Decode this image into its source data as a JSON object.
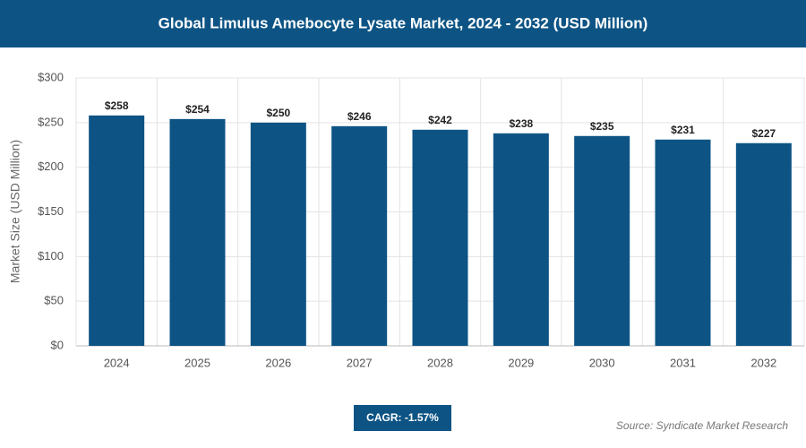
{
  "chart_data": {
    "type": "bar",
    "title": "Global Limulus Amebocyte Lysate Market, 2024 - 2032 (USD Million)",
    "y_label": "Market Size (USD Million)",
    "categories": [
      "2024",
      "2025",
      "2026",
      "2027",
      "2028",
      "2029",
      "2030",
      "2031",
      "2032"
    ],
    "values": [
      258,
      254,
      250,
      246,
      242,
      238,
      235,
      231,
      227
    ],
    "value_labels": [
      "$258",
      "$254",
      "$250",
      "$246",
      "$242",
      "$238",
      "$235",
      "$231",
      "$227"
    ],
    "color": "#0d5485",
    "ylim": [
      0,
      300
    ],
    "yticks": [
      {
        "value": 0,
        "label": "$0"
      },
      {
        "value": 50,
        "label": "$50"
      },
      {
        "value": 100,
        "label": "$100"
      },
      {
        "value": 150,
        "label": "$150"
      },
      {
        "value": 200,
        "label": "$200"
      },
      {
        "value": 250,
        "label": "$250"
      },
      {
        "value": 300,
        "label": "$300"
      }
    ],
    "grid": true,
    "annotation": "CAGR: -1.57%",
    "source": "Source: Syndicate Market Research"
  }
}
